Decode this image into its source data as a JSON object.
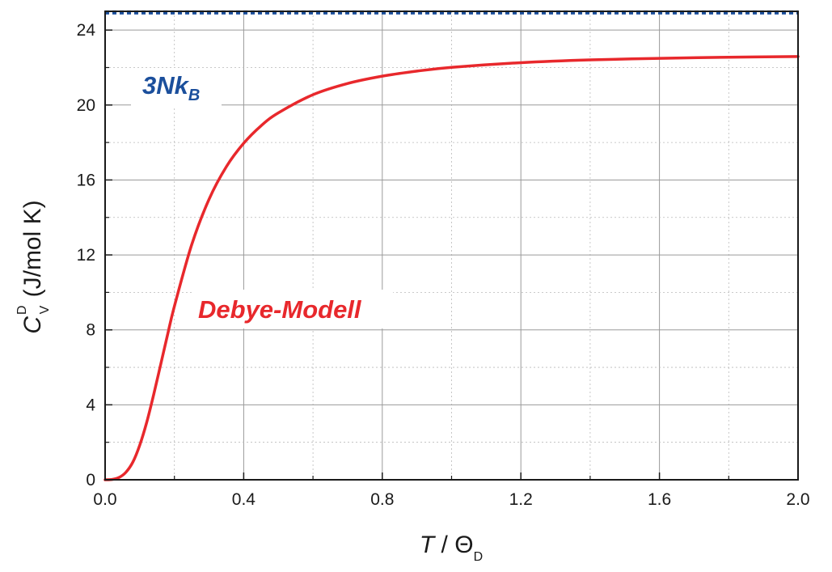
{
  "chart_data": {
    "type": "line",
    "xlim": [
      0.0,
      2.0
    ],
    "ylim": [
      0,
      25
    ],
    "x_ticks": [
      0.0,
      0.4,
      0.8,
      1.2,
      1.6,
      2.0
    ],
    "x_tick_labels": [
      "0.0",
      "0.4",
      "0.8",
      "1.2",
      "1.6",
      "2.0"
    ],
    "y_ticks": [
      0,
      4,
      8,
      12,
      16,
      20,
      24
    ],
    "y_tick_labels": [
      "0",
      "4",
      "8",
      "12",
      "16",
      "20",
      "24"
    ],
    "grid": true,
    "xlabel": {
      "main": "T",
      "separator": " / ",
      "symbol": "Θ",
      "subscript": "D"
    },
    "ylabel": {
      "main": "C",
      "superscript": "D",
      "subscript": "V",
      "unit": " (J/mol K)"
    },
    "series": [
      {
        "name": "Debye-Modell",
        "color": "#e8282c",
        "style": "solid",
        "x": [
          0.0,
          0.02,
          0.04,
          0.06,
          0.08,
          0.1,
          0.12,
          0.14,
          0.16,
          0.18,
          0.2,
          0.25,
          0.3,
          0.35,
          0.4,
          0.45,
          0.5,
          0.6,
          0.7,
          0.8,
          0.9,
          1.0,
          1.2,
          1.4,
          1.6,
          1.8,
          2.0
        ],
        "y": [
          0.0,
          0.015,
          0.12,
          0.4,
          0.94,
          1.85,
          3.06,
          4.53,
          6.12,
          7.72,
          9.26,
          12.55,
          14.97,
          16.71,
          17.96,
          18.89,
          19.58,
          20.55,
          21.15,
          21.54,
          21.81,
          22.01,
          22.26,
          22.41,
          22.49,
          22.55,
          22.59
        ]
      },
      {
        "name": "3NkB",
        "color": "#1b4f9c",
        "style": "dotted",
        "x": [
          0.0,
          2.0
        ],
        "y": [
          24.94,
          24.94
        ]
      }
    ],
    "annotations": [
      {
        "main": "3Nk",
        "sub": "B",
        "color": "#1b4f9c"
      },
      {
        "text": "Debye-Modell",
        "color": "#e8282c"
      }
    ]
  }
}
